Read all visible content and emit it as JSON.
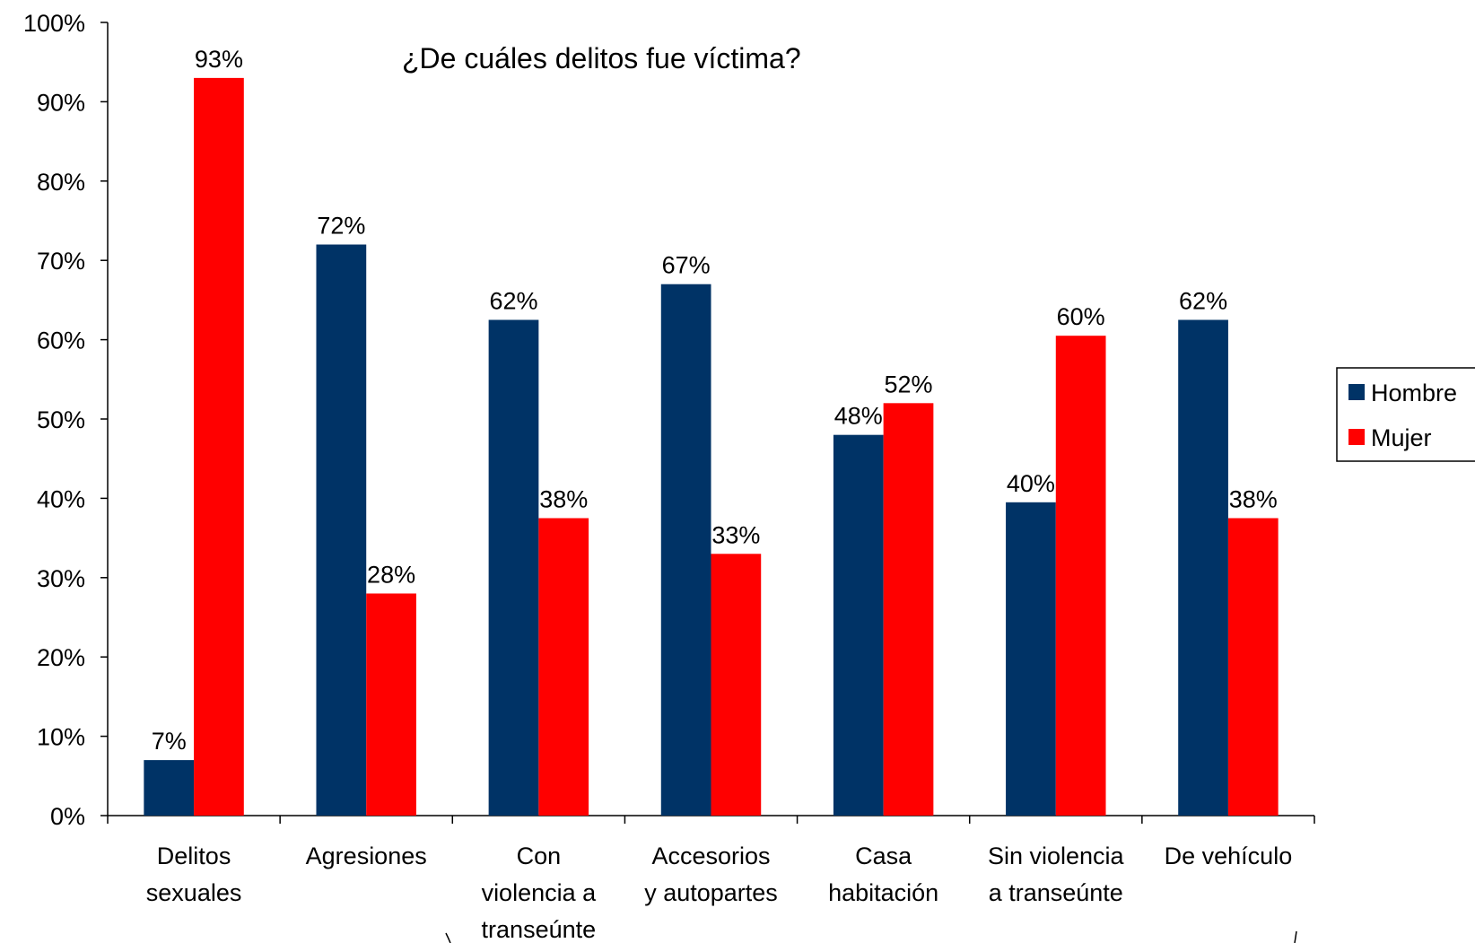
{
  "chart_data": {
    "type": "bar",
    "title": "¿De cuáles delitos fue víctima?",
    "xlabel": "",
    "ylabel": "",
    "ylim": [
      0,
      100
    ],
    "y_unit": "%",
    "y_ticks": [
      "0%",
      "10%",
      "20%",
      "30%",
      "40%",
      "50%",
      "60%",
      "70%",
      "80%",
      "90%",
      "100%"
    ],
    "categories": [
      [
        "Delitos",
        "sexuales"
      ],
      [
        "Agresiones"
      ],
      [
        "Con",
        "violencia a",
        "transeúnte"
      ],
      [
        "Accesorios",
        "y autopartes"
      ],
      [
        "Casa",
        "habitación"
      ],
      [
        "Sin violencia",
        "a transeúnte"
      ],
      [
        "De vehículo"
      ]
    ],
    "series": [
      {
        "name": "Hombre",
        "color": "#003366",
        "values": [
          7,
          72,
          62.5,
          67,
          48,
          39.5,
          62.5
        ],
        "labels": [
          "7%",
          "72%",
          "62%",
          "67%",
          "48%",
          "40%",
          "62%"
        ]
      },
      {
        "name": "Mujer",
        "color": "#ff0000",
        "values": [
          93,
          28,
          37.5,
          33,
          52,
          60.5,
          37.5
        ],
        "labels": [
          "93%",
          "28%",
          "38%",
          "33%",
          "52%",
          "60%",
          "38%"
        ]
      }
    ],
    "legend": "right",
    "grid": false
  }
}
